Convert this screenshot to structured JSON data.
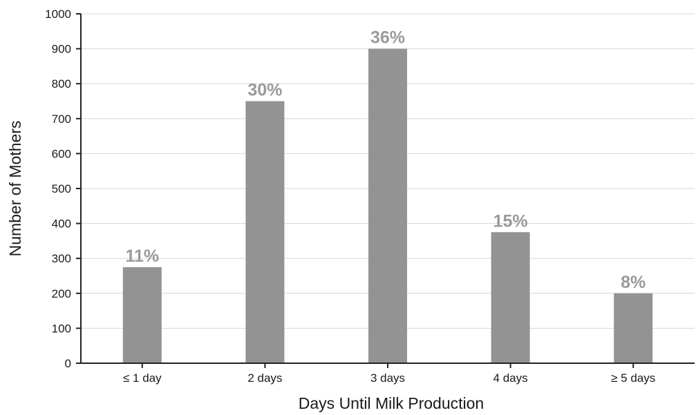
{
  "chart_data": {
    "type": "bar",
    "categories": [
      "≤ 1 day",
      "2 days",
      "3 days",
      "4 days",
      "≥ 5 days"
    ],
    "values": [
      275,
      750,
      900,
      375,
      200
    ],
    "data_labels": [
      "11%",
      "30%",
      "36%",
      "15%",
      "8%"
    ],
    "xlabel": "Days Until Milk Production",
    "ylabel": "Number of Mothers",
    "ylim": [
      0,
      1000
    ],
    "yticks": [
      0,
      100,
      200,
      300,
      400,
      500,
      600,
      700,
      800,
      900,
      1000
    ],
    "grid": true,
    "colors": {
      "bar": "#939393",
      "data_label": "#9a9a9a",
      "grid": "#d6d6d6",
      "axis": "#222222"
    }
  }
}
